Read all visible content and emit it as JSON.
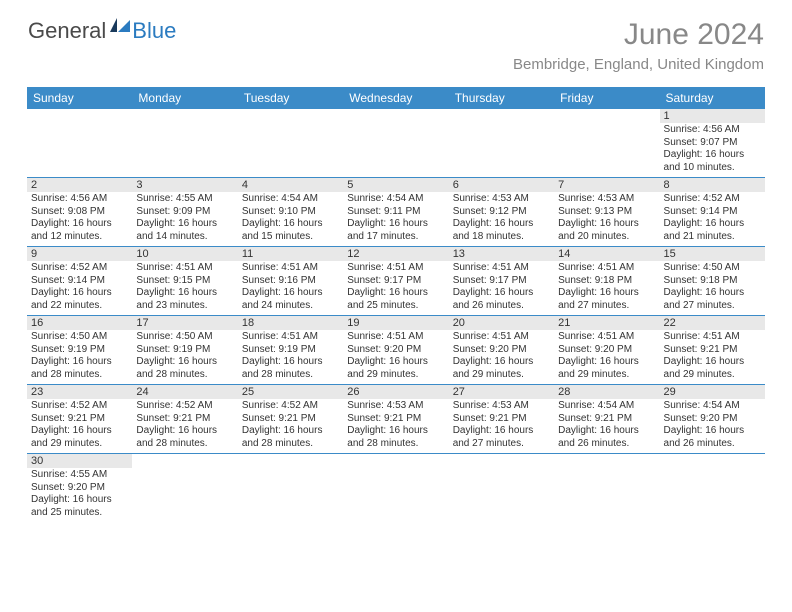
{
  "logo": {
    "text1": "General",
    "text2": "Blue"
  },
  "title": "June 2024",
  "location": "Bembridge, England, United Kingdom",
  "colors": {
    "header_bg": "#3b8bc8",
    "header_text": "#ffffff",
    "daynum_bg": "#e8e8e8",
    "text": "#333333",
    "title_color": "#888888",
    "week_border": "#3b8bc8"
  },
  "weekdays": [
    "Sunday",
    "Monday",
    "Tuesday",
    "Wednesday",
    "Thursday",
    "Friday",
    "Saturday"
  ],
  "weeks": [
    [
      {
        "n": "",
        "sr": "",
        "ss": "",
        "dl": ""
      },
      {
        "n": "",
        "sr": "",
        "ss": "",
        "dl": ""
      },
      {
        "n": "",
        "sr": "",
        "ss": "",
        "dl": ""
      },
      {
        "n": "",
        "sr": "",
        "ss": "",
        "dl": ""
      },
      {
        "n": "",
        "sr": "",
        "ss": "",
        "dl": ""
      },
      {
        "n": "",
        "sr": "",
        "ss": "",
        "dl": ""
      },
      {
        "n": "1",
        "sr": "Sunrise: 4:56 AM",
        "ss": "Sunset: 9:07 PM",
        "dl": "Daylight: 16 hours and 10 minutes."
      }
    ],
    [
      {
        "n": "2",
        "sr": "Sunrise: 4:56 AM",
        "ss": "Sunset: 9:08 PM",
        "dl": "Daylight: 16 hours and 12 minutes."
      },
      {
        "n": "3",
        "sr": "Sunrise: 4:55 AM",
        "ss": "Sunset: 9:09 PM",
        "dl": "Daylight: 16 hours and 14 minutes."
      },
      {
        "n": "4",
        "sr": "Sunrise: 4:54 AM",
        "ss": "Sunset: 9:10 PM",
        "dl": "Daylight: 16 hours and 15 minutes."
      },
      {
        "n": "5",
        "sr": "Sunrise: 4:54 AM",
        "ss": "Sunset: 9:11 PM",
        "dl": "Daylight: 16 hours and 17 minutes."
      },
      {
        "n": "6",
        "sr": "Sunrise: 4:53 AM",
        "ss": "Sunset: 9:12 PM",
        "dl": "Daylight: 16 hours and 18 minutes."
      },
      {
        "n": "7",
        "sr": "Sunrise: 4:53 AM",
        "ss": "Sunset: 9:13 PM",
        "dl": "Daylight: 16 hours and 20 minutes."
      },
      {
        "n": "8",
        "sr": "Sunrise: 4:52 AM",
        "ss": "Sunset: 9:14 PM",
        "dl": "Daylight: 16 hours and 21 minutes."
      }
    ],
    [
      {
        "n": "9",
        "sr": "Sunrise: 4:52 AM",
        "ss": "Sunset: 9:14 PM",
        "dl": "Daylight: 16 hours and 22 minutes."
      },
      {
        "n": "10",
        "sr": "Sunrise: 4:51 AM",
        "ss": "Sunset: 9:15 PM",
        "dl": "Daylight: 16 hours and 23 minutes."
      },
      {
        "n": "11",
        "sr": "Sunrise: 4:51 AM",
        "ss": "Sunset: 9:16 PM",
        "dl": "Daylight: 16 hours and 24 minutes."
      },
      {
        "n": "12",
        "sr": "Sunrise: 4:51 AM",
        "ss": "Sunset: 9:17 PM",
        "dl": "Daylight: 16 hours and 25 minutes."
      },
      {
        "n": "13",
        "sr": "Sunrise: 4:51 AM",
        "ss": "Sunset: 9:17 PM",
        "dl": "Daylight: 16 hours and 26 minutes."
      },
      {
        "n": "14",
        "sr": "Sunrise: 4:51 AM",
        "ss": "Sunset: 9:18 PM",
        "dl": "Daylight: 16 hours and 27 minutes."
      },
      {
        "n": "15",
        "sr": "Sunrise: 4:50 AM",
        "ss": "Sunset: 9:18 PM",
        "dl": "Daylight: 16 hours and 27 minutes."
      }
    ],
    [
      {
        "n": "16",
        "sr": "Sunrise: 4:50 AM",
        "ss": "Sunset: 9:19 PM",
        "dl": "Daylight: 16 hours and 28 minutes."
      },
      {
        "n": "17",
        "sr": "Sunrise: 4:50 AM",
        "ss": "Sunset: 9:19 PM",
        "dl": "Daylight: 16 hours and 28 minutes."
      },
      {
        "n": "18",
        "sr": "Sunrise: 4:51 AM",
        "ss": "Sunset: 9:19 PM",
        "dl": "Daylight: 16 hours and 28 minutes."
      },
      {
        "n": "19",
        "sr": "Sunrise: 4:51 AM",
        "ss": "Sunset: 9:20 PM",
        "dl": "Daylight: 16 hours and 29 minutes."
      },
      {
        "n": "20",
        "sr": "Sunrise: 4:51 AM",
        "ss": "Sunset: 9:20 PM",
        "dl": "Daylight: 16 hours and 29 minutes."
      },
      {
        "n": "21",
        "sr": "Sunrise: 4:51 AM",
        "ss": "Sunset: 9:20 PM",
        "dl": "Daylight: 16 hours and 29 minutes."
      },
      {
        "n": "22",
        "sr": "Sunrise: 4:51 AM",
        "ss": "Sunset: 9:21 PM",
        "dl": "Daylight: 16 hours and 29 minutes."
      }
    ],
    [
      {
        "n": "23",
        "sr": "Sunrise: 4:52 AM",
        "ss": "Sunset: 9:21 PM",
        "dl": "Daylight: 16 hours and 29 minutes."
      },
      {
        "n": "24",
        "sr": "Sunrise: 4:52 AM",
        "ss": "Sunset: 9:21 PM",
        "dl": "Daylight: 16 hours and 28 minutes."
      },
      {
        "n": "25",
        "sr": "Sunrise: 4:52 AM",
        "ss": "Sunset: 9:21 PM",
        "dl": "Daylight: 16 hours and 28 minutes."
      },
      {
        "n": "26",
        "sr": "Sunrise: 4:53 AM",
        "ss": "Sunset: 9:21 PM",
        "dl": "Daylight: 16 hours and 28 minutes."
      },
      {
        "n": "27",
        "sr": "Sunrise: 4:53 AM",
        "ss": "Sunset: 9:21 PM",
        "dl": "Daylight: 16 hours and 27 minutes."
      },
      {
        "n": "28",
        "sr": "Sunrise: 4:54 AM",
        "ss": "Sunset: 9:21 PM",
        "dl": "Daylight: 16 hours and 26 minutes."
      },
      {
        "n": "29",
        "sr": "Sunrise: 4:54 AM",
        "ss": "Sunset: 9:20 PM",
        "dl": "Daylight: 16 hours and 26 minutes."
      }
    ],
    [
      {
        "n": "30",
        "sr": "Sunrise: 4:55 AM",
        "ss": "Sunset: 9:20 PM",
        "dl": "Daylight: 16 hours and 25 minutes."
      },
      {
        "n": "",
        "sr": "",
        "ss": "",
        "dl": ""
      },
      {
        "n": "",
        "sr": "",
        "ss": "",
        "dl": ""
      },
      {
        "n": "",
        "sr": "",
        "ss": "",
        "dl": ""
      },
      {
        "n": "",
        "sr": "",
        "ss": "",
        "dl": ""
      },
      {
        "n": "",
        "sr": "",
        "ss": "",
        "dl": ""
      },
      {
        "n": "",
        "sr": "",
        "ss": "",
        "dl": ""
      }
    ]
  ]
}
